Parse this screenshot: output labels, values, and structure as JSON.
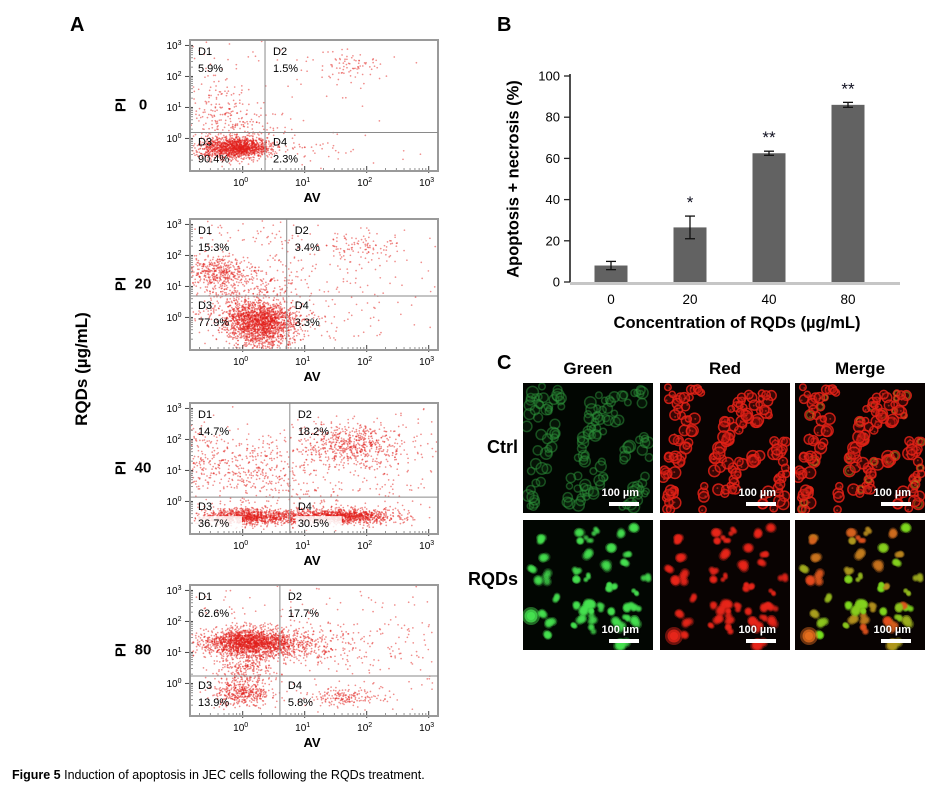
{
  "figure": {
    "panels": {
      "a": "A",
      "b": "B",
      "c": "C"
    },
    "caption_bold": "Figure 5",
    "caption_text": " Induction of apoptosis in JEC cells following the RQDs treatment."
  },
  "colors": {
    "dot": "#e2231a",
    "bar": "#626262",
    "frame": "#9a9a9a",
    "gate": "#8a8a8a",
    "axis": "#222222",
    "baseline": "#c6c6c6"
  },
  "panel_a": {
    "row_axis_label": "RQDs (µg/mL)"
  },
  "chart_data": [
    {
      "type": "scatter",
      "name": "flow-0",
      "concentration": "0",
      "xlabel": "AV",
      "ylabel": "PI",
      "x_tick_exponents": [
        0,
        1,
        2,
        3
      ],
      "y_tick_exponents": [
        0,
        1,
        2,
        3
      ],
      "xlim_log": [
        -0.85,
        3.15
      ],
      "ylim_log": [
        -1.05,
        3.18
      ],
      "gate_x_log": 0.36,
      "gate_y_log": 0.19,
      "pct_backing": false,
      "seed": 101,
      "quadrants": [
        {
          "label": "D1",
          "value": "5.9%"
        },
        {
          "label": "D2",
          "value": "1.5%"
        },
        {
          "label": "D3",
          "value": "90.4%"
        },
        {
          "label": "D4",
          "value": "2.3%"
        }
      ],
      "clusters": [
        [
          -0.1,
          -0.3,
          0.28,
          0.17,
          1400
        ],
        [
          -0.15,
          0.35,
          0.35,
          0.45,
          220
        ],
        [
          -0.5,
          1.5,
          0.3,
          0.7,
          80
        ],
        [
          1.75,
          2.3,
          0.28,
          0.25,
          75
        ],
        [
          1.2,
          1.2,
          0.8,
          0.8,
          30
        ],
        [
          1.0,
          -0.5,
          0.8,
          0.25,
          45
        ],
        [
          0.5,
          2.8,
          1.2,
          0.3,
          25
        ]
      ]
    },
    {
      "type": "scatter",
      "name": "flow-20",
      "concentration": "20",
      "xlabel": "AV",
      "ylabel": "PI",
      "x_tick_exponents": [
        0,
        1,
        2,
        3
      ],
      "y_tick_exponents": [
        0,
        1,
        2,
        3
      ],
      "xlim_log": [
        -0.85,
        3.15
      ],
      "ylim_log": [
        -1.05,
        3.18
      ],
      "gate_x_log": 0.71,
      "gate_y_log": 0.69,
      "pct_backing": false,
      "seed": 202,
      "quadrants": [
        {
          "label": "D1",
          "value": "15.3%"
        },
        {
          "label": "D2",
          "value": "3.4%"
        },
        {
          "label": "D3",
          "value": "77.9%"
        },
        {
          "label": "D4",
          "value": "3.3%"
        }
      ],
      "clusters": [
        [
          0.28,
          -0.1,
          0.3,
          0.28,
          1600
        ],
        [
          0.3,
          -0.75,
          0.25,
          0.22,
          250
        ],
        [
          -0.41,
          1.43,
          0.28,
          0.28,
          420
        ],
        [
          -0.3,
          0.5,
          0.35,
          0.5,
          150
        ],
        [
          0.3,
          0.8,
          0.4,
          0.5,
          220
        ],
        [
          1.95,
          2.3,
          0.3,
          0.22,
          90
        ],
        [
          1.5,
          1.5,
          0.8,
          0.8,
          130
        ],
        [
          1.2,
          -0.3,
          0.8,
          0.3,
          60
        ],
        [
          0.15,
          2.75,
          0.7,
          0.28,
          60
        ]
      ]
    },
    {
      "type": "scatter",
      "name": "flow-40",
      "concentration": "40",
      "xlabel": "AV",
      "ylabel": "PI",
      "x_tick_exponents": [
        0,
        1,
        2,
        3
      ],
      "y_tick_exponents": [
        0,
        1,
        2,
        3
      ],
      "xlim_log": [
        -0.85,
        3.15
      ],
      "ylim_log": [
        -1.05,
        3.18
      ],
      "gate_x_log": 0.76,
      "gate_y_log": 0.14,
      "pct_backing": true,
      "seed": 303,
      "quadrants": [
        {
          "label": "D1",
          "value": "14.7%"
        },
        {
          "label": "D2",
          "value": "18.2%"
        },
        {
          "label": "D3",
          "value": "36.7%"
        },
        {
          "label": "D4",
          "value": "30.5%"
        }
      ],
      "clusters": [
        [
          0.05,
          -0.5,
          0.4,
          0.13,
          1000
        ],
        [
          1.65,
          -0.48,
          0.42,
          0.13,
          1000
        ],
        [
          0.9,
          -0.5,
          0.5,
          0.12,
          260
        ],
        [
          1.75,
          1.85,
          0.4,
          0.35,
          560
        ],
        [
          -0.62,
          1.45,
          0.25,
          0.6,
          170
        ],
        [
          0.25,
          1.0,
          0.45,
          0.6,
          280
        ],
        [
          1.2,
          0.6,
          0.9,
          0.7,
          210
        ],
        [
          2.6,
          1.5,
          0.4,
          0.9,
          80
        ]
      ]
    },
    {
      "type": "scatter",
      "name": "flow-80",
      "concentration": "80",
      "xlabel": "AV",
      "ylabel": "PI",
      "x_tick_exponents": [
        0,
        1,
        2,
        3
      ],
      "y_tick_exponents": [
        0,
        1,
        2,
        3
      ],
      "xlim_log": [
        -0.85,
        3.15
      ],
      "ylim_log": [
        -1.05,
        3.18
      ],
      "gate_x_log": 0.6,
      "gate_y_log": 0.24,
      "pct_backing": false,
      "seed": 404,
      "quadrants": [
        {
          "label": "D1",
          "value": "62.6%"
        },
        {
          "label": "D2",
          "value": "17.7%"
        },
        {
          "label": "D3",
          "value": "13.9%"
        },
        {
          "label": "D4",
          "value": "5.8%"
        }
      ],
      "clusters": [
        [
          0.1,
          1.32,
          0.38,
          0.22,
          1800
        ],
        [
          0.9,
          1.25,
          0.45,
          0.3,
          360
        ],
        [
          0.05,
          0.45,
          0.25,
          0.45,
          360
        ],
        [
          0.0,
          -0.35,
          0.22,
          0.18,
          320
        ],
        [
          1.65,
          -0.45,
          0.3,
          0.15,
          170
        ],
        [
          1.8,
          0.8,
          0.8,
          0.7,
          130
        ],
        [
          0.5,
          2.5,
          1.0,
          0.4,
          60
        ],
        [
          2.5,
          1.5,
          0.5,
          0.9,
          50
        ]
      ]
    },
    {
      "type": "bar",
      "categories": [
        "0",
        "20",
        "40",
        "80"
      ],
      "values": [
        8,
        26.5,
        62.5,
        86
      ],
      "errors": [
        2,
        5.5,
        1,
        1.2
      ],
      "sig": [
        "",
        "*",
        "**",
        "**"
      ],
      "title": "",
      "xlabel": "Concentration of RQDs (µg/mL)",
      "ylabel": "Apoptosis + necrosis (%)",
      "ylim": [
        0,
        100
      ],
      "yticks": [
        0,
        20,
        40,
        60,
        80,
        100
      ],
      "legend": null,
      "grid": false
    }
  ],
  "panel_c": {
    "col_headers": [
      "Green",
      "Red",
      "Merge"
    ],
    "row_labels": [
      "Ctrl",
      "RQDs"
    ],
    "scale_bar_label": "100 µm",
    "tiles": [
      {
        "row": "Ctrl",
        "col": "Green",
        "mode": "tissue",
        "channel": "green",
        "seed": 11
      },
      {
        "row": "Ctrl",
        "col": "Red",
        "mode": "tissue",
        "channel": "red",
        "seed": 11
      },
      {
        "row": "Ctrl",
        "col": "Merge",
        "mode": "tissue",
        "channel": "merge",
        "seed": 11
      },
      {
        "row": "RQDs",
        "col": "Green",
        "mode": "cells",
        "channel": "green",
        "seed": 77
      },
      {
        "row": "RQDs",
        "col": "Red",
        "mode": "cells",
        "channel": "red",
        "seed": 77
      },
      {
        "row": "RQDs",
        "col": "Merge",
        "mode": "cells",
        "channel": "merge",
        "seed": 77
      }
    ]
  }
}
